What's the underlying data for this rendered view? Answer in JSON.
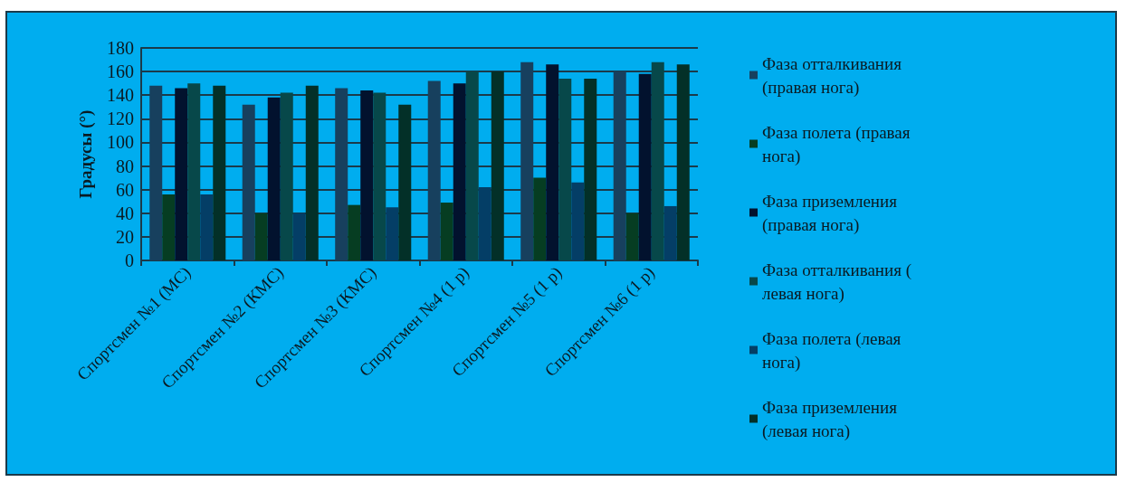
{
  "chart_data": {
    "type": "bar",
    "ylabel": "Градусы (°)",
    "categories": [
      "Спортсмен №1 (МС)",
      "Спортсмен №2 (КМС)",
      "Спортсмен №3 (КМС)",
      "Спортсмен №4 (1 р)",
      "Спортсмен №5 (1 р)",
      "Спортсмен №6 (1 р)"
    ],
    "series": [
      {
        "name": "Фаза отталкивания (правая нога)",
        "color": "#17405e",
        "values": [
          148,
          132,
          146,
          152,
          168,
          160
        ]
      },
      {
        "name": "Фаза полета (правая нога)",
        "color": "#063d22",
        "values": [
          56,
          40,
          47,
          49,
          70,
          40
        ]
      },
      {
        "name": "Фаза приземления (правая нога)",
        "color": "#02122e",
        "values": [
          146,
          138,
          144,
          150,
          166,
          158
        ]
      },
      {
        "name": "Фаза отталкивания ( левая нога)",
        "color": "#07484a",
        "values": [
          150,
          142,
          142,
          160,
          154,
          168
        ]
      },
      {
        "name": "Фаза полета (левая нога)",
        "color": "#043e66",
        "values": [
          56,
          40,
          45,
          62,
          66,
          46
        ]
      },
      {
        "name": "Фаза приземления (левая нога)",
        "color": "#033028",
        "values": [
          148,
          148,
          132,
          160,
          154,
          166
        ]
      }
    ],
    "ylim": [
      0,
      180
    ],
    "yticks": [
      0,
      20,
      40,
      60,
      80,
      100,
      120,
      140,
      160,
      180
    ],
    "grid": "y",
    "legend": "right"
  }
}
